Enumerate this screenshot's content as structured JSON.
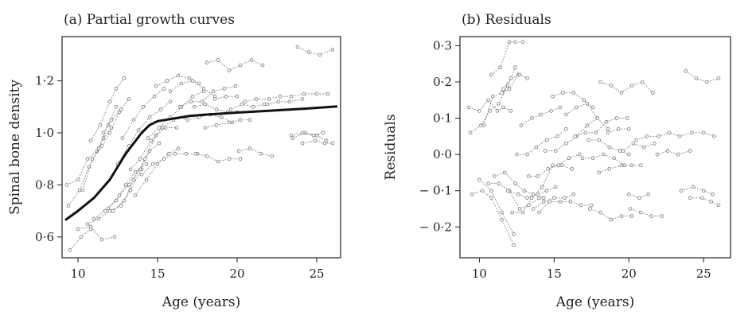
{
  "chart_data": [
    {
      "type": "line",
      "title": "(a) Partial growth curves",
      "xlabel": "Age (years)",
      "ylabel": "Spinal bone density",
      "xlim": [
        9,
        26.5
      ],
      "ylim": [
        0.52,
        1.37
      ],
      "xticks": [
        10,
        15,
        20,
        25
      ],
      "xtick_labels": [
        "10",
        "15",
        "20",
        "25"
      ],
      "yticks": [
        0.6,
        0.8,
        1.0,
        1.2
      ],
      "ytick_labels": [
        "0·6",
        "0·8",
        "1·0",
        "1·2"
      ],
      "grid": false,
      "fitted_curve": {
        "x": [
          9.2,
          10,
          11,
          12,
          12.5,
          13,
          13.5,
          14,
          14.5,
          15,
          15.5,
          16,
          17,
          18,
          20,
          22,
          24,
          26.3
        ],
        "y": [
          0.665,
          0.7,
          0.75,
          0.82,
          0.87,
          0.92,
          0.96,
          1.0,
          1.03,
          1.045,
          1.05,
          1.055,
          1.065,
          1.07,
          1.078,
          1.085,
          1.092,
          1.102
        ]
      },
      "series": [
        {
          "x": [
            9.3,
            10.0,
            10.6,
            11.2,
            11.6,
            12.1
          ],
          "y": [
            0.8,
            0.82,
            0.9,
            0.93,
            0.98,
            1.02
          ]
        },
        {
          "x": [
            9.4,
            10.1,
            10.7,
            11.3,
            11.9,
            12.4
          ],
          "y": [
            0.72,
            0.78,
            0.87,
            0.94,
            1.03,
            1.1
          ]
        },
        {
          "x": [
            10.3,
            10.9,
            11.5,
            12.0,
            12.6
          ],
          "y": [
            0.78,
            0.9,
            0.95,
            1.0,
            1.08
          ]
        },
        {
          "x": [
            10.8,
            11.4,
            12.0,
            12.4,
            12.9
          ],
          "y": [
            0.97,
            1.03,
            1.12,
            1.17,
            1.21
          ]
        },
        {
          "x": [
            11.6,
            12.1,
            12.7,
            13.2
          ],
          "y": [
            1.0,
            1.05,
            1.09,
            1.13
          ]
        },
        {
          "x": [
            9.5,
            10.2,
            10.8
          ],
          "y": [
            0.55,
            0.6,
            0.63
          ]
        },
        {
          "x": [
            10.0,
            10.8,
            11.5,
            12.3
          ],
          "y": [
            0.63,
            0.64,
            0.59,
            0.6
          ]
        },
        {
          "x": [
            10.6,
            11.3,
            12.0,
            12.7,
            13.3,
            14.0
          ],
          "y": [
            0.65,
            0.67,
            0.7,
            0.72,
            0.78,
            0.86
          ]
        },
        {
          "x": [
            11.0,
            11.7,
            12.4,
            13.0,
            13.6,
            14.3
          ],
          "y": [
            0.67,
            0.7,
            0.74,
            0.8,
            0.85,
            0.88
          ]
        },
        {
          "x": [
            11.9,
            12.6,
            13.2,
            13.9,
            14.5,
            15.1
          ],
          "y": [
            0.71,
            0.76,
            0.8,
            0.86,
            0.93,
            0.96
          ]
        },
        {
          "x": [
            12.2,
            12.9,
            13.5,
            14.2,
            14.9,
            15.5,
            16.2
          ],
          "y": [
            0.7,
            0.74,
            0.82,
            0.9,
            0.99,
            1.02,
            1.02
          ]
        },
        {
          "x": [
            12.5,
            13.2,
            13.8,
            14.5,
            15.2,
            15.8
          ],
          "y": [
            0.88,
            0.95,
            1.01,
            1.06,
            1.09,
            1.12
          ]
        },
        {
          "x": [
            12.8,
            13.5,
            14.1,
            14.8,
            15.4
          ],
          "y": [
            0.98,
            1.05,
            1.1,
            1.14,
            1.17
          ]
        },
        {
          "x": [
            13.3,
            13.9,
            14.6,
            15.3,
            16.0,
            16.7
          ],
          "y": [
            0.86,
            0.9,
            0.97,
            1.02,
            1.05,
            1.06
          ]
        },
        {
          "x": [
            13.6,
            14.3,
            15.0,
            15.7,
            16.3
          ],
          "y": [
            0.76,
            0.82,
            0.88,
            0.92,
            0.94
          ]
        },
        {
          "x": [
            14.0,
            14.7,
            15.4,
            16.1,
            16.8,
            17.5
          ],
          "y": [
            0.84,
            0.88,
            0.9,
            0.92,
            0.92,
            0.92
          ]
        },
        {
          "x": [
            14.4,
            15.1,
            15.8,
            16.5,
            17.2,
            17.9
          ],
          "y": [
            0.98,
            1.02,
            1.06,
            1.1,
            1.14,
            1.16
          ]
        },
        {
          "x": [
            14.9,
            15.6,
            16.3,
            17.0,
            17.6
          ],
          "y": [
            1.18,
            1.2,
            1.22,
            1.21,
            1.19
          ]
        },
        {
          "x": [
            15.8,
            16.5,
            17.2,
            17.9,
            18.6
          ],
          "y": [
            1.16,
            1.19,
            1.2,
            1.17,
            1.14
          ]
        },
        {
          "x": [
            16.4,
            17.1,
            17.8,
            18.5,
            19.2,
            19.9
          ],
          "y": [
            1.1,
            1.12,
            1.12,
            1.16,
            1.17,
            1.18
          ]
        },
        {
          "x": [
            16.9,
            17.6,
            18.3,
            19.0,
            19.7
          ],
          "y": [
            1.05,
            1.06,
            1.07,
            1.06,
            1.04
          ]
        },
        {
          "x": [
            17.4,
            18.1,
            18.8,
            19.5,
            20.2
          ],
          "y": [
            0.92,
            0.91,
            0.89,
            0.9,
            0.9
          ]
        },
        {
          "x": [
            17.3,
            18.0,
            18.7,
            19.4,
            20.0
          ],
          "y": [
            1.1,
            1.11,
            1.09,
            1.08,
            1.08
          ]
        },
        {
          "x": [
            18.0,
            18.7,
            19.5,
            20.2,
            20.8
          ],
          "y": [
            1.02,
            1.03,
            1.04,
            1.05,
            1.05
          ]
        },
        {
          "x": [
            19.6,
            20.3,
            21.0,
            21.7
          ],
          "y": [
            1.09,
            1.11,
            1.1,
            1.11
          ]
        },
        {
          "x": [
            18.6,
            19.3,
            20.0
          ],
          "y": [
            1.13,
            1.14,
            1.14
          ]
        },
        {
          "x": [
            20.1,
            20.8,
            21.5,
            22.2
          ],
          "y": [
            0.93,
            0.94,
            0.92,
            0.91
          ]
        },
        {
          "x": [
            20.5,
            21.2,
            22.0,
            22.7,
            23.4,
            24.2,
            25.0,
            25.7
          ],
          "y": [
            1.12,
            1.13,
            1.13,
            1.14,
            1.14,
            1.15,
            1.15,
            1.15
          ]
        },
        {
          "x": [
            21.9,
            22.6,
            23.3,
            24.1
          ],
          "y": [
            1.11,
            1.12,
            1.12,
            1.13
          ]
        },
        {
          "x": [
            23.5,
            24.3,
            25.0,
            25.6
          ],
          "y": [
            0.98,
            1.0,
            0.99,
            0.97
          ]
        },
        {
          "x": [
            24.1,
            24.9,
            25.5,
            26.0
          ],
          "y": [
            0.96,
            0.97,
            0.96,
            0.96
          ]
        },
        {
          "x": [
            23.4,
            24.1,
            24.8,
            25.4
          ],
          "y": [
            0.99,
            1.0,
            0.99,
            1.0
          ]
        },
        {
          "x": [
            18.1,
            18.8,
            19.5,
            20.2,
            20.9,
            21.6
          ],
          "y": [
            1.27,
            1.28,
            1.24,
            1.26,
            1.28,
            1.26
          ]
        },
        {
          "x": [
            23.8,
            24.5,
            25.2,
            26.0
          ],
          "y": [
            1.33,
            1.31,
            1.3,
            1.32
          ]
        }
      ]
    },
    {
      "type": "line",
      "title": "(b) Residuals",
      "xlabel": "Age (years)",
      "ylabel": "Residuals",
      "xlim": [
        8.7,
        26.8
      ],
      "ylim": [
        -0.285,
        0.325
      ],
      "xticks": [
        10,
        15,
        20,
        25
      ],
      "xtick_labels": [
        "10",
        "15",
        "20",
        "25"
      ],
      "yticks": [
        -0.2,
        -0.1,
        0.0,
        0.1,
        0.2,
        0.3
      ],
      "ytick_labels": [
        "− 0·2",
        "− 0·1",
        "0·0",
        "0·1",
        "0·2",
        "0·3"
      ],
      "grid": false,
      "series": [
        {
          "x": [
            9.3,
            10.0,
            10.6,
            11.2,
            11.6,
            12.1
          ],
          "y": [
            0.13,
            0.12,
            0.15,
            0.12,
            0.13,
            0.12
          ]
        },
        {
          "x": [
            9.4,
            10.1,
            10.7,
            11.3,
            11.9,
            12.4
          ],
          "y": [
            0.06,
            0.08,
            0.12,
            0.14,
            0.19,
            0.24
          ]
        },
        {
          "x": [
            10.3,
            10.9,
            11.5,
            12.0,
            12.6
          ],
          "y": [
            0.08,
            0.16,
            0.17,
            0.18,
            0.22
          ]
        },
        {
          "x": [
            10.8,
            11.4,
            12.0,
            12.4,
            12.9
          ],
          "y": [
            0.22,
            0.24,
            0.31,
            0.31,
            0.31
          ]
        },
        {
          "x": [
            11.6,
            12.1,
            12.7,
            13.2
          ],
          "y": [
            0.18,
            0.21,
            0.22,
            0.21
          ]
        },
        {
          "x": [
            9.5,
            10.2,
            10.8,
            11.5,
            12.3
          ],
          "y": [
            -0.11,
            -0.1,
            -0.12,
            -0.18,
            -0.25
          ]
        },
        {
          "x": [
            10.0,
            10.8,
            11.5,
            12.3
          ],
          "y": [
            -0.07,
            -0.1,
            -0.16,
            -0.22
          ]
        },
        {
          "x": [
            10.6,
            11.3,
            12.0,
            12.7,
            13.3,
            14.0
          ],
          "y": [
            -0.08,
            -0.08,
            -0.1,
            -0.15,
            -0.14,
            -0.12
          ]
        },
        {
          "x": [
            11.0,
            11.7,
            12.4,
            13.0,
            13.6,
            14.3
          ],
          "y": [
            -0.06,
            -0.05,
            -0.08,
            -0.1,
            -0.11,
            -0.12
          ]
        },
        {
          "x": [
            11.9,
            12.6,
            13.2,
            13.9,
            14.5,
            15.1
          ],
          "y": [
            -0.1,
            -0.11,
            -0.12,
            -0.11,
            -0.1,
            -0.09
          ]
        },
        {
          "x": [
            12.2,
            12.9,
            13.5,
            14.2,
            14.9,
            15.5,
            16.2
          ],
          "y": [
            -0.16,
            -0.16,
            -0.12,
            -0.09,
            -0.03,
            -0.03,
            -0.04
          ]
        },
        {
          "x": [
            12.5,
            13.2,
            13.8,
            14.5,
            15.2,
            15.8
          ],
          "y": [
            0.0,
            0.0,
            0.02,
            0.04,
            0.05,
            0.07
          ]
        },
        {
          "x": [
            12.8,
            13.5,
            14.1,
            14.8,
            15.4
          ],
          "y": [
            0.08,
            0.1,
            0.11,
            0.12,
            0.13
          ]
        },
        {
          "x": [
            13.3,
            13.9,
            14.6,
            15.3,
            16.0,
            16.7
          ],
          "y": [
            -0.06,
            -0.06,
            -0.04,
            -0.03,
            -0.01,
            0.0
          ]
        },
        {
          "x": [
            13.6,
            14.3,
            15.0,
            15.7,
            16.3
          ],
          "y": [
            -0.15,
            -0.13,
            -0.12,
            -0.12,
            -0.11
          ]
        },
        {
          "x": [
            14.0,
            14.7,
            15.4,
            16.1,
            16.8,
            17.5
          ],
          "y": [
            -0.16,
            -0.13,
            -0.13,
            -0.13,
            -0.14,
            -0.14
          ]
        },
        {
          "x": [
            14.4,
            15.1,
            15.8,
            16.5,
            17.2,
            17.9
          ],
          "y": [
            0.01,
            0.01,
            0.03,
            0.05,
            0.08,
            0.1
          ]
        },
        {
          "x": [
            14.9,
            15.6,
            16.3,
            17.0,
            17.6
          ],
          "y": [
            0.16,
            0.17,
            0.17,
            0.15,
            0.13
          ]
        },
        {
          "x": [
            15.8,
            16.5,
            17.2,
            17.9,
            18.6
          ],
          "y": [
            0.11,
            0.13,
            0.14,
            0.1,
            0.07
          ]
        },
        {
          "x": [
            16.4,
            17.1,
            17.8,
            18.5,
            19.2,
            19.9
          ],
          "y": [
            0.05,
            0.06,
            0.06,
            0.09,
            0.1,
            0.1
          ]
        },
        {
          "x": [
            16.9,
            17.6,
            18.3,
            19.0,
            19.7
          ],
          "y": [
            -0.01,
            -0.01,
            0.0,
            -0.01,
            -0.03
          ]
        },
        {
          "x": [
            17.4,
            18.1,
            18.8,
            19.5,
            20.2
          ],
          "y": [
            -0.15,
            -0.16,
            -0.18,
            -0.17,
            -0.17
          ]
        },
        {
          "x": [
            17.3,
            18.0,
            18.7,
            19.4,
            20.0
          ],
          "y": [
            0.04,
            0.04,
            0.02,
            0.01,
            0.0
          ]
        },
        {
          "x": [
            18.0,
            18.7,
            19.5,
            20.2,
            20.8
          ],
          "y": [
            -0.05,
            -0.04,
            -0.03,
            -0.03,
            -0.03
          ]
        },
        {
          "x": [
            19.6,
            20.3,
            21.0,
            21.7
          ],
          "y": [
            0.01,
            0.03,
            0.02,
            0.03
          ]
        },
        {
          "x": [
            18.6,
            19.3,
            20.0
          ],
          "y": [
            0.06,
            0.07,
            0.07
          ]
        },
        {
          "x": [
            20.1,
            20.8,
            21.5,
            22.2
          ],
          "y": [
            -0.15,
            -0.16,
            -0.17,
            -0.17
          ]
        },
        {
          "x": [
            20.5,
            21.2,
            22.0,
            22.7,
            23.4,
            24.2,
            25.0,
            25.7
          ],
          "y": [
            0.04,
            0.05,
            0.05,
            0.06,
            0.05,
            0.06,
            0.06,
            0.05
          ]
        },
        {
          "x": [
            21.9,
            22.6,
            23.3,
            24.1
          ],
          "y": [
            0.0,
            0.01,
            0.0,
            0.01
          ]
        },
        {
          "x": [
            23.5,
            24.3,
            25.0,
            25.6
          ],
          "y": [
            -0.1,
            -0.09,
            -0.1,
            -0.11
          ]
        },
        {
          "x": [
            24.1,
            24.9,
            25.5,
            26.0
          ],
          "y": [
            -0.12,
            -0.12,
            -0.13,
            -0.14
          ]
        },
        {
          "x": [
            20.0,
            20.7,
            21.3
          ],
          "y": [
            -0.11,
            -0.12,
            -0.11
          ]
        },
        {
          "x": [
            18.1,
            18.8,
            19.5,
            20.2,
            20.9,
            21.6
          ],
          "y": [
            0.2,
            0.19,
            0.17,
            0.19,
            0.2,
            0.17
          ]
        },
        {
          "x": [
            23.8,
            24.5,
            25.2,
            26.0
          ],
          "y": [
            0.23,
            0.21,
            0.2,
            0.21
          ]
        }
      ]
    }
  ]
}
